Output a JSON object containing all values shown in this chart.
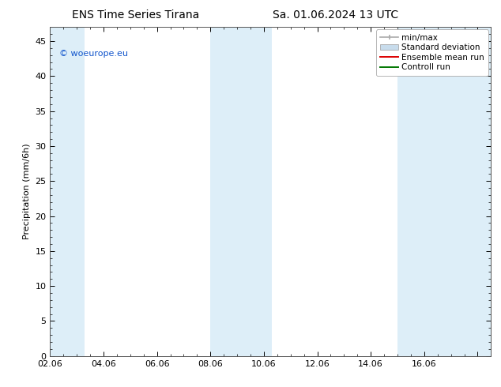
{
  "title_left": "ENS Time Series Tirana",
  "title_right": "Sa. 01.06.2024 13 UTC",
  "ylabel": "Precipitation (mm/6h)",
  "x_tick_positions": [
    0,
    2,
    4,
    6,
    8,
    10,
    12,
    14,
    16
  ],
  "x_tick_labels": [
    "02.06",
    "04.06",
    "06.06",
    "08.06",
    "10.06",
    "12.06",
    "14.06",
    "16.06",
    ""
  ],
  "xlim": [
    0,
    16.5
  ],
  "ylim": [
    0,
    47
  ],
  "yticks": [
    0,
    5,
    10,
    15,
    20,
    25,
    30,
    35,
    40,
    45
  ],
  "shaded_bands": [
    {
      "x_start": 0.0,
      "x_end": 1.3,
      "color": "#ddeef8"
    },
    {
      "x_start": 6.0,
      "x_end": 8.3,
      "color": "#ddeef8"
    },
    {
      "x_start": 13.0,
      "x_end": 16.5,
      "color": "#ddeef8"
    }
  ],
  "legend_labels": [
    "min/max",
    "Standard deviation",
    "Ensemble mean run",
    "Controll run"
  ],
  "legend_colors_fill": [
    "#bbbbbb",
    "#ccdcec",
    "#ff0000",
    "#008800"
  ],
  "watermark": "© woeurope.eu",
  "watermark_color": "#1155cc",
  "background_color": "#ffffff",
  "plot_bg_color": "#ffffff",
  "spine_color": "#555555",
  "title_fontsize": 10,
  "label_fontsize": 8,
  "tick_fontsize": 8,
  "legend_fontsize": 7.5
}
